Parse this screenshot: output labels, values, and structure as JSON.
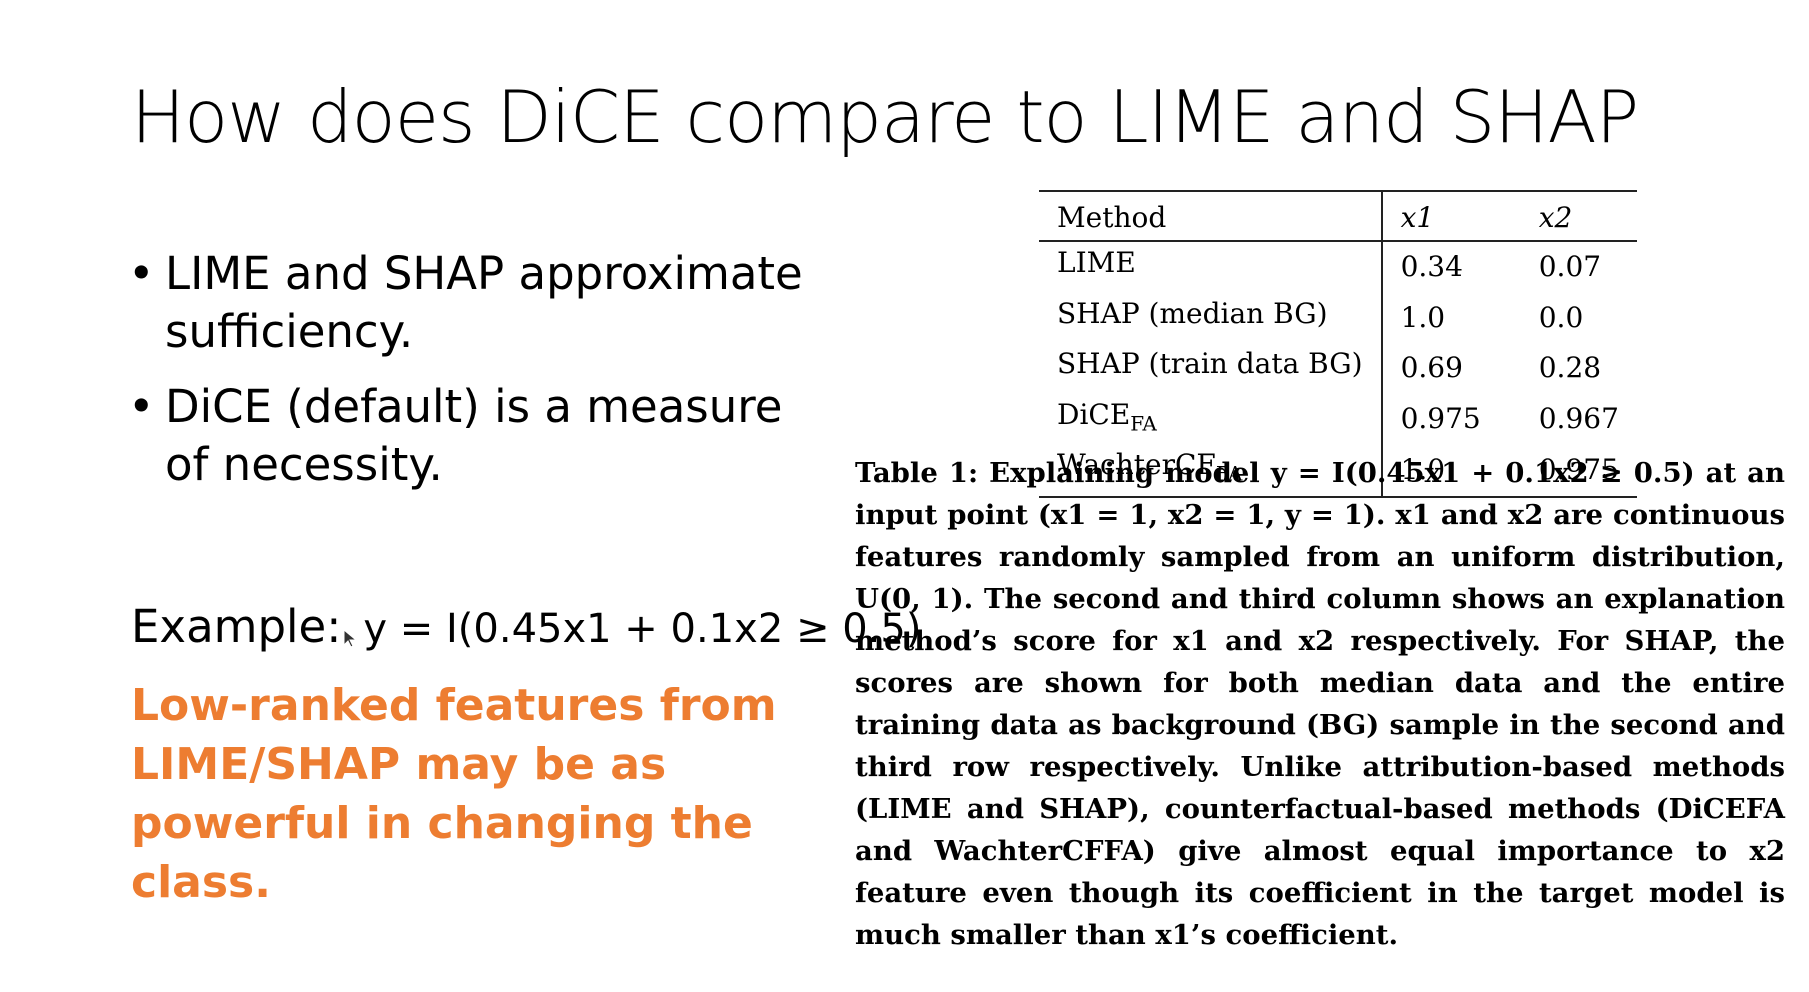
{
  "slide": {
    "title": "How does DiCE compare to LIME and SHAP",
    "bullets": [
      "LIME and SHAP approximate sufficiency.",
      "DiCE (default) is a measure of necessity."
    ],
    "bullet_symbol": "•",
    "example": {
      "label": "Example:",
      "equation": "y = I(0.45x1 + 0.1x2 ≥ 0.5)"
    },
    "highlight": "Low-ranked features from LIME/SHAP may be as powerful in changing the class.",
    "highlight_color": "#ed7d31",
    "cursor_icon": "mouse-pointer-icon"
  },
  "table": {
    "headers": [
      "Method",
      "x1",
      "x2"
    ],
    "rows": [
      {
        "method": "LIME",
        "method_sub": "",
        "x1": "0.34",
        "x2": "0.07"
      },
      {
        "method": "SHAP (median BG)",
        "method_sub": "",
        "x1": "1.0",
        "x2": "0.0"
      },
      {
        "method": "SHAP (train data BG)",
        "method_sub": "",
        "x1": "0.69",
        "x2": "0.28"
      },
      {
        "method": "DiCE",
        "method_sub": "FA",
        "x1": "0.975",
        "x2": "0.967"
      },
      {
        "method": "WachterCF",
        "method_sub": "FA",
        "x1": "1.0",
        "x2": "0.975"
      }
    ]
  },
  "caption": {
    "text": "Table 1: Explaining model y = I(0.45x1 + 0.1x2 ≥ 0.5) at an input point (x1 = 1, x2 = 1, y = 1). x1 and x2 are continuous features randomly sampled from an uniform distribution, U(0, 1). The second and third column shows an explanation method’s score for x1 and x2 respectively. For SHAP, the scores are shown for both median data and the entire training data as background (BG) sample in the second and third row respectively. Unlike attribution-based methods (LIME and SHAP), counterfactual-based methods (DiCEFA and WachterCFFA) give almost equal importance to x2 feature even though its coefficient in the target model is much smaller than x1’s coefficient."
  }
}
